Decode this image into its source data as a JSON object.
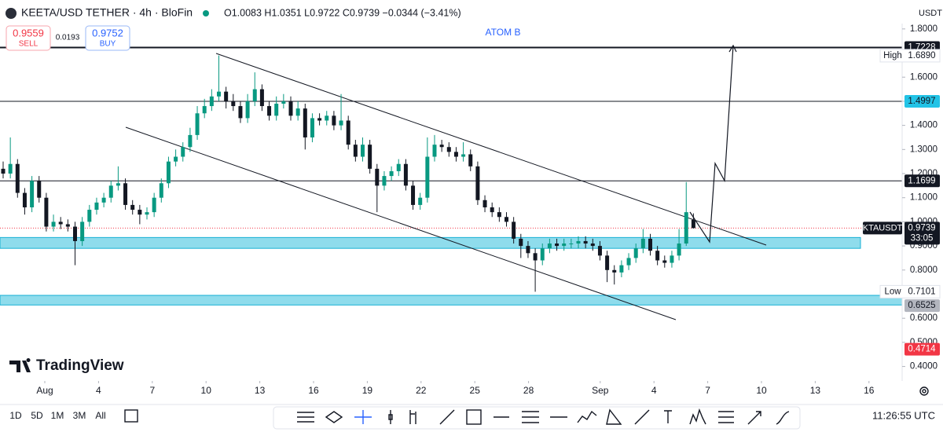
{
  "header": {
    "symbol": "KEETA/USD TETHER · 4h · BloFin",
    "ohlc": "O1.0083 H1.0351 L0.9722 C0.9739 −0.0344 (−3.41%)",
    "currency": "USDT"
  },
  "trade": {
    "sell": "0.9559",
    "sell_label": "SELL",
    "spread": "0.0193",
    "buy": "0.9752",
    "buy_label": "BUY"
  },
  "brand": "TradingView",
  "toolbar": {
    "ranges": [
      "1D",
      "5D",
      "1M",
      "3M",
      "All"
    ],
    "time": "11:26:55 UTC"
  },
  "chart_data": {
    "type": "candlestick",
    "annotation": "ATOM B",
    "up_color": "#089981",
    "down_color": "#131722",
    "candles": [
      [
        1.22,
        1.25,
        1.18,
        1.2
      ],
      [
        1.2,
        1.35,
        1.18,
        1.24
      ],
      [
        1.24,
        1.26,
        1.1,
        1.12
      ],
      [
        1.12,
        1.14,
        1.03,
        1.06
      ],
      [
        1.06,
        1.19,
        1.04,
        1.17
      ],
      [
        1.17,
        1.19,
        1.08,
        1.1
      ],
      [
        1.1,
        1.12,
        0.96,
        0.98
      ],
      [
        0.98,
        1.03,
        0.96,
        1.0
      ],
      [
        1.0,
        1.02,
        0.97,
        0.99
      ],
      [
        0.99,
        1.01,
        0.96,
        0.98
      ],
      [
        0.98,
        1.0,
        0.82,
        0.92
      ],
      [
        0.92,
        1.02,
        0.9,
        1.0
      ],
      [
        1.0,
        1.07,
        0.98,
        1.05
      ],
      [
        1.05,
        1.1,
        1.03,
        1.08
      ],
      [
        1.08,
        1.12,
        1.06,
        1.1
      ],
      [
        1.1,
        1.17,
        1.08,
        1.15
      ],
      [
        1.15,
        1.23,
        1.13,
        1.16
      ],
      [
        1.16,
        1.18,
        1.05,
        1.07
      ],
      [
        1.07,
        1.09,
        1.03,
        1.05
      ],
      [
        1.05,
        1.07,
        0.99,
        1.03
      ],
      [
        1.03,
        1.06,
        1.01,
        1.04
      ],
      [
        1.04,
        1.12,
        1.02,
        1.1
      ],
      [
        1.1,
        1.18,
        1.08,
        1.16
      ],
      [
        1.16,
        1.27,
        1.14,
        1.25
      ],
      [
        1.25,
        1.3,
        1.23,
        1.27
      ],
      [
        1.27,
        1.33,
        1.25,
        1.31
      ],
      [
        1.31,
        1.39,
        1.29,
        1.36
      ],
      [
        1.36,
        1.48,
        1.34,
        1.45
      ],
      [
        1.45,
        1.51,
        1.43,
        1.48
      ],
      [
        1.48,
        1.55,
        1.46,
        1.52
      ],
      [
        1.52,
        1.69,
        1.5,
        1.54
      ],
      [
        1.54,
        1.56,
        1.47,
        1.5
      ],
      [
        1.5,
        1.53,
        1.46,
        1.48
      ],
      [
        1.48,
        1.5,
        1.41,
        1.43
      ],
      [
        1.43,
        1.53,
        1.41,
        1.5
      ],
      [
        1.5,
        1.62,
        1.48,
        1.55
      ],
      [
        1.55,
        1.57,
        1.46,
        1.48
      ],
      [
        1.48,
        1.5,
        1.42,
        1.44
      ],
      [
        1.44,
        1.52,
        1.42,
        1.49
      ],
      [
        1.49,
        1.53,
        1.47,
        1.5
      ],
      [
        1.5,
        1.52,
        1.42,
        1.44
      ],
      [
        1.44,
        1.5,
        1.42,
        1.47
      ],
      [
        1.47,
        1.49,
        1.3,
        1.35
      ],
      [
        1.35,
        1.45,
        1.33,
        1.43
      ],
      [
        1.43,
        1.45,
        1.4,
        1.42
      ],
      [
        1.42,
        1.46,
        1.4,
        1.44
      ],
      [
        1.44,
        1.46,
        1.38,
        1.4
      ],
      [
        1.4,
        1.53,
        1.38,
        1.42
      ],
      [
        1.42,
        1.44,
        1.3,
        1.32
      ],
      [
        1.32,
        1.34,
        1.25,
        1.27
      ],
      [
        1.27,
        1.35,
        1.25,
        1.32
      ],
      [
        1.32,
        1.34,
        1.2,
        1.22
      ],
      [
        1.22,
        1.24,
        1.04,
        1.15
      ],
      [
        1.15,
        1.21,
        1.13,
        1.19
      ],
      [
        1.19,
        1.23,
        1.17,
        1.21
      ],
      [
        1.21,
        1.26,
        1.19,
        1.24
      ],
      [
        1.24,
        1.26,
        1.13,
        1.15
      ],
      [
        1.15,
        1.17,
        1.05,
        1.07
      ],
      [
        1.07,
        1.12,
        1.05,
        1.1
      ],
      [
        1.1,
        1.35,
        1.08,
        1.27
      ],
      [
        1.27,
        1.36,
        1.25,
        1.32
      ],
      [
        1.32,
        1.34,
        1.29,
        1.31
      ],
      [
        1.31,
        1.33,
        1.27,
        1.29
      ],
      [
        1.29,
        1.31,
        1.25,
        1.27
      ],
      [
        1.27,
        1.33,
        1.25,
        1.28
      ],
      [
        1.28,
        1.3,
        1.21,
        1.23
      ],
      [
        1.23,
        1.25,
        1.07,
        1.09
      ],
      [
        1.09,
        1.11,
        1.04,
        1.06
      ],
      [
        1.06,
        1.08,
        1.02,
        1.04
      ],
      [
        1.04,
        1.06,
        1.0,
        1.02
      ],
      [
        1.02,
        1.04,
        0.98,
        1.0
      ],
      [
        1.0,
        1.02,
        0.91,
        0.93
      ],
      [
        0.93,
        0.95,
        0.85,
        0.9
      ],
      [
        0.9,
        0.92,
        0.85,
        0.87
      ],
      [
        0.87,
        0.89,
        0.71,
        0.84
      ],
      [
        0.84,
        0.91,
        0.82,
        0.89
      ],
      [
        0.89,
        0.93,
        0.87,
        0.91
      ],
      [
        0.91,
        0.93,
        0.88,
        0.9
      ],
      [
        0.9,
        0.93,
        0.88,
        0.91
      ],
      [
        0.91,
        0.93,
        0.89,
        0.91
      ],
      [
        0.91,
        0.94,
        0.89,
        0.92
      ],
      [
        0.92,
        0.94,
        0.89,
        0.91
      ],
      [
        0.91,
        0.93,
        0.88,
        0.9
      ],
      [
        0.9,
        0.92,
        0.84,
        0.86
      ],
      [
        0.86,
        0.88,
        0.75,
        0.8
      ],
      [
        0.8,
        0.82,
        0.74,
        0.79
      ],
      [
        0.79,
        0.84,
        0.77,
        0.82
      ],
      [
        0.82,
        0.87,
        0.8,
        0.85
      ],
      [
        0.85,
        0.91,
        0.83,
        0.89
      ],
      [
        0.89,
        0.97,
        0.87,
        0.93
      ],
      [
        0.93,
        0.95,
        0.86,
        0.88
      ],
      [
        0.88,
        0.9,
        0.82,
        0.84
      ],
      [
        0.84,
        0.86,
        0.81,
        0.83
      ],
      [
        0.83,
        0.88,
        0.81,
        0.86
      ],
      [
        0.86,
        0.97,
        0.84,
        0.91
      ],
      [
        0.91,
        1.165,
        0.9,
        1.04
      ],
      [
        1.0083,
        1.0351,
        0.9722,
        0.9739
      ]
    ],
    "ylim": [
      0.34,
      1.92
    ],
    "yticks": [
      {
        "value": 1.8,
        "label": "1.8000"
      },
      {
        "value": 1.7,
        "label": "1.7000"
      },
      {
        "value": 1.6,
        "label": "1.6000"
      },
      {
        "value": 1.5,
        "label": "1.5000"
      },
      {
        "value": 1.4,
        "label": "1.4000"
      },
      {
        "value": 1.3,
        "label": "1.3000"
      },
      {
        "value": 1.2,
        "label": "1.2000"
      },
      {
        "value": 1.1,
        "label": "1.1000"
      },
      {
        "value": 1.0,
        "label": "1.0000"
      },
      {
        "value": 0.9,
        "label": "0.9000"
      },
      {
        "value": 0.8,
        "label": "0.8000"
      },
      {
        "value": 0.7,
        "label": "0.7000"
      },
      {
        "value": 0.6,
        "label": "0.6000"
      },
      {
        "value": 0.5,
        "label": "0.5000"
      },
      {
        "value": 0.4,
        "label": "0.4000"
      }
    ],
    "xlim": [
      -1.5,
      48.5
    ],
    "xticks": [
      {
        "value": 1,
        "label": "Aug"
      },
      4,
      7,
      10,
      13,
      16,
      19,
      22,
      25,
      28,
      {
        "value": 32,
        "label": "Sep"
      },
      {
        "value": 35,
        "label": "4"
      },
      {
        "value": 38,
        "label": "7"
      },
      {
        "value": 41,
        "label": "10"
      },
      {
        "value": 44,
        "label": "13"
      },
      {
        "value": 47,
        "label": "16"
      }
    ],
    "hlines": [
      {
        "value": 1.7228,
        "label": "1.7228"
      },
      {
        "value": 1.4997,
        "label": "1.4997"
      },
      {
        "value": 1.1699,
        "label": "1.1699"
      }
    ],
    "zones": [
      {
        "top": 0.935,
        "bottom": 0.89
      },
      {
        "top": 0.695,
        "bottom": 0.655
      }
    ],
    "high": {
      "name": "High",
      "value": 1.689,
      "label": "1.6890"
    },
    "low": {
      "name": "Low",
      "value": 0.7101,
      "label": "0.7101"
    },
    "level_tags": [
      {
        "value": 0.6525,
        "label": "0.6525",
        "color": "#b2b5be"
      },
      {
        "value": 0.4714,
        "label": "0.4714",
        "color": "#f23645"
      }
    ],
    "last": {
      "symbol": "KTAUSDT",
      "value": 0.9739,
      "label": "0.9739",
      "countdown": "33:05"
    }
  }
}
